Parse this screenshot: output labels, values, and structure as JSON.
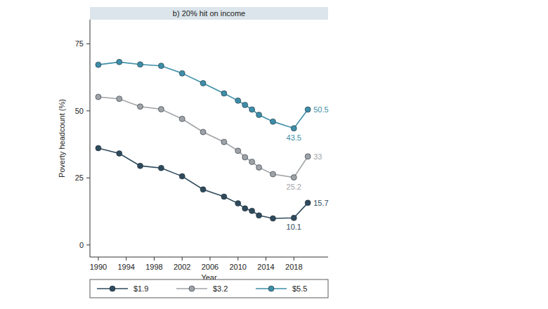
{
  "chart_data": {
    "type": "line",
    "title": "b) 20% hit on income",
    "x_label": "Year",
    "y_label": "Poverty headcount (%)",
    "x": [
      1990,
      1993,
      1996,
      1999,
      2002,
      2005,
      2008,
      2010,
      2011,
      2012,
      2013,
      2015,
      2018,
      2020
    ],
    "series": [
      {
        "name": "$1.9",
        "color": "#2f4a5c",
        "values": [
          36.1,
          34.1,
          29.5,
          28.7,
          25.6,
          20.7,
          18,
          15.5,
          13.6,
          12.7,
          11,
          9.9,
          10.1,
          15.7
        ]
      },
      {
        "name": "$3.2",
        "color": "#9fa3a7",
        "values": [
          55.2,
          54.5,
          51.6,
          50.6,
          47,
          42.1,
          38.4,
          35.1,
          32.7,
          31,
          28.9,
          26.4,
          25.2,
          33
        ]
      },
      {
        "name": "$5.5",
        "color": "#3d8ea8",
        "values": [
          67.2,
          68.2,
          67.3,
          66.8,
          64,
          60.3,
          56.5,
          53.8,
          52.2,
          50.5,
          48.5,
          46,
          43.5,
          50.5
        ]
      }
    ],
    "annotations": [
      {
        "text": "50.5",
        "x": 2020,
        "y": 50.5,
        "color": "#3d8ea8"
      },
      {
        "text": "43.5",
        "x": 2018,
        "y": 43.5,
        "color": "#3d8ea8"
      },
      {
        "text": "33",
        "x": 2020,
        "y": 33,
        "color": "#9fa3a7"
      },
      {
        "text": "25.2",
        "x": 2018,
        "y": 25.2,
        "color": "#9fa3a7"
      },
      {
        "text": "15.7",
        "x": 2020,
        "y": 15.7,
        "color": "#2f4a5c"
      },
      {
        "text": "10.1",
        "x": 2018,
        "y": 10.1,
        "color": "#2f4a5c"
      }
    ],
    "xlim": [
      1988.8,
      2022.9
    ],
    "xticks": [
      1990,
      1994,
      1998,
      2002,
      2006,
      2010,
      2014,
      2018
    ],
    "ylim": [
      -4.5,
      84
    ],
    "yticks": [
      0,
      25,
      50,
      75
    ],
    "grid": false,
    "legend": "bottom",
    "marker": "circle"
  }
}
